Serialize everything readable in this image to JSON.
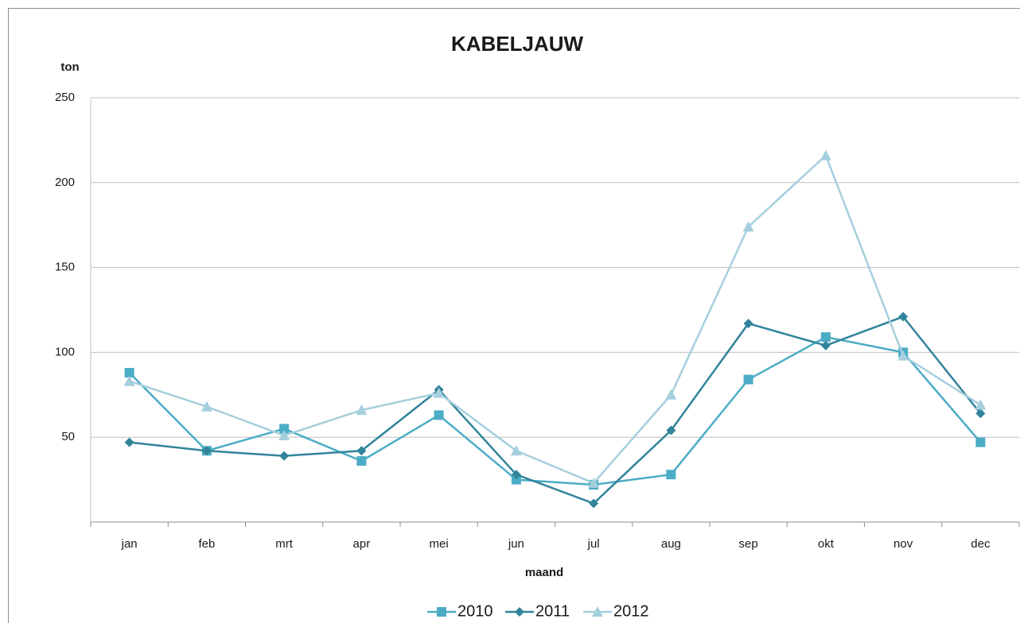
{
  "chart_data": {
    "type": "line",
    "title": "KABELJAUW",
    "y_label": "ton",
    "x_label": "maand",
    "categories": [
      "jan",
      "feb",
      "mrt",
      "apr",
      "mei",
      "jun",
      "jul",
      "aug",
      "sep",
      "okt",
      "nov",
      "dec"
    ],
    "series": [
      {
        "name": "2010",
        "color": "#4bacc6",
        "marker": "square",
        "values": [
          88,
          42,
          55,
          36,
          63,
          25,
          22,
          28,
          84,
          109,
          100,
          47
        ]
      },
      {
        "name": "2011",
        "color": "#31849b",
        "marker": "diamond",
        "values": [
          47,
          42,
          39,
          42,
          78,
          28,
          11,
          54,
          117,
          104,
          121,
          64
        ]
      },
      {
        "name": "2012",
        "color": "#a5cfdd",
        "marker": "triangle",
        "values": [
          83,
          68,
          51,
          66,
          76,
          42,
          23,
          75,
          174,
          216,
          98,
          69
        ]
      }
    ],
    "ylim": [
      0,
      250
    ],
    "yticks": [
      50,
      100,
      150,
      200,
      250
    ],
    "grid": true,
    "legend": "bottom"
  }
}
